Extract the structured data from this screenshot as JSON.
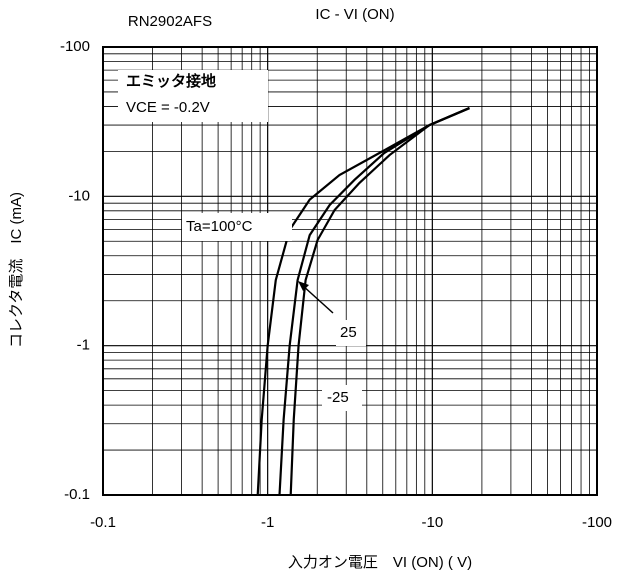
{
  "chart_data": {
    "type": "line",
    "title": "IC - VI (ON)",
    "subtitle": "RN2902AFS",
    "x_label": "入力オン電圧　VI (ON) ( V)",
    "y_label": "コレクタ電流　IC (mA)",
    "annotations": [
      "エミッタ接地",
      "VCE = -0.2V"
    ],
    "log_x": true,
    "log_y": true,
    "grid": true,
    "minor_grid": true,
    "xlim": [
      -0.1,
      -100
    ],
    "xticks": [
      -0.1,
      -1,
      -10,
      -100
    ],
    "ylim": [
      -0.1,
      -100
    ],
    "yticks": [
      -100,
      -10,
      -1,
      -0.1
    ],
    "series": [
      {
        "name": "Ta=100°C",
        "color": "#000000",
        "x": [
          -0.87,
          -0.92,
          -1.0,
          -1.12,
          -1.36,
          -1.8,
          -2.73,
          -4.77,
          -9.6,
          -16.8
        ],
        "values": [
          -0.1,
          -0.32,
          -1,
          -2.75,
          -5.96,
          -9.5,
          -13.9,
          -19.5,
          -30,
          -39
        ]
      },
      {
        "name": "25",
        "color": "#000000",
        "x": [
          -1.18,
          -1.25,
          -1.36,
          -1.52,
          -1.8,
          -2.38,
          -3.37,
          -5.1,
          -9.6,
          -16.8
        ],
        "values": [
          -0.1,
          -0.32,
          -1,
          -2.75,
          -5.5,
          -8.75,
          -12.9,
          -19.5,
          -30,
          -39
        ]
      },
      {
        "name": "-25",
        "color": "#000000",
        "x": [
          -1.38,
          -1.44,
          -1.54,
          -1.7,
          -2.01,
          -2.55,
          -3.61,
          -5.5,
          -9.6,
          -16.8
        ],
        "values": [
          -0.1,
          -0.32,
          -1,
          -2.75,
          -5.1,
          -8.1,
          -12.3,
          -18.9,
          -30,
          -39
        ]
      }
    ]
  }
}
